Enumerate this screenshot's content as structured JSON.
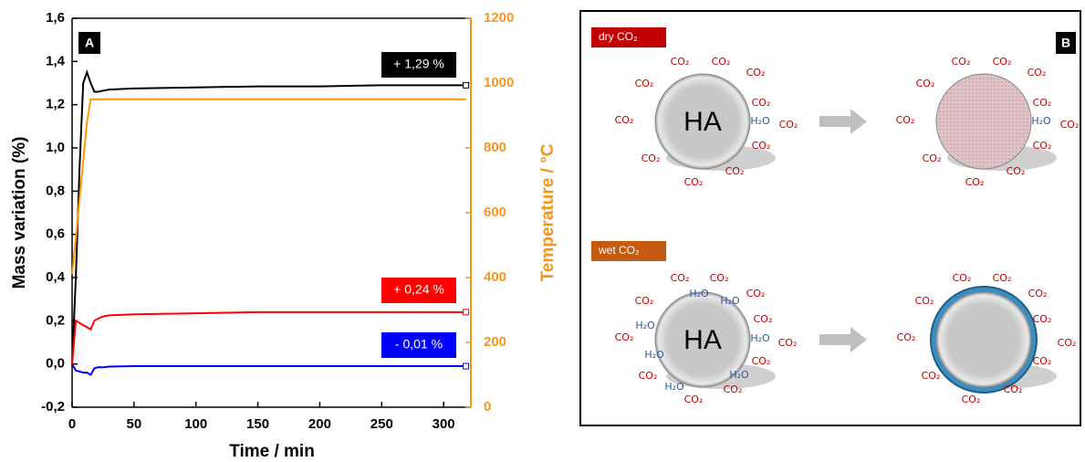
{
  "chart_data": {
    "type": "line",
    "panel_label": "A",
    "x_label": "Time / min",
    "y_label": "Mass variation (%)",
    "y2_label": "Temperature / °C",
    "xlim": [
      0,
      322
    ],
    "xticks": [
      0,
      50,
      100,
      150,
      200,
      250,
      300
    ],
    "ylim": [
      -0.2,
      1.6
    ],
    "yticks": [
      {
        "value": -0.2,
        "label": "-0,2"
      },
      {
        "value": 0,
        "label": "0,0"
      },
      {
        "value": 0.2,
        "label": "0,2"
      },
      {
        "value": 0.4,
        "label": "0,4"
      },
      {
        "value": 0.6,
        "label": "0,6"
      },
      {
        "value": 0.8,
        "label": "0,8"
      },
      {
        "value": 1.0,
        "label": "1,0"
      },
      {
        "value": 1.2,
        "label": "1,2"
      },
      {
        "value": 1.4,
        "label": "1,4"
      },
      {
        "value": 1.6,
        "label": "1,6"
      }
    ],
    "y2lim": [
      0,
      1200
    ],
    "y2ticks": [
      0,
      200,
      400,
      600,
      800,
      1000,
      1200
    ],
    "y2_color": "#f7941d",
    "x": [
      0,
      3,
      6,
      9,
      12,
      15,
      18,
      21,
      25,
      30,
      50,
      100,
      150,
      200,
      250,
      300,
      318
    ],
    "series": [
      {
        "color": "#000000",
        "values": [
          0,
          0.4,
          0.9,
          1.3,
          1.35,
          1.3,
          1.26,
          1.26,
          1.265,
          1.27,
          1.275,
          1.28,
          1.285,
          1.285,
          1.29,
          1.29,
          1.29
        ]
      },
      {
        "color": "#ff9900",
        "axis": "y2",
        "values": [
          410,
          520,
          640,
          760,
          880,
          950,
          950,
          950,
          950,
          950,
          950,
          950,
          950,
          950,
          950,
          950,
          950
        ]
      },
      {
        "color": "#ff0000",
        "values": [
          0,
          0.2,
          0.19,
          0.18,
          0.17,
          0.16,
          0.2,
          0.21,
          0.22,
          0.225,
          0.23,
          0.235,
          0.24,
          0.24,
          0.24,
          0.24,
          0.24
        ]
      },
      {
        "color": "#0000ff",
        "values": [
          0,
          -0.03,
          -0.035,
          -0.04,
          -0.04,
          -0.05,
          -0.02,
          -0.015,
          -0.015,
          -0.012,
          -0.01,
          -0.01,
          -0.01,
          -0.01,
          -0.01,
          -0.01,
          -0.01
        ]
      }
    ],
    "annotations": [
      {
        "text": "+ 1,29 %",
        "color": "#000000"
      },
      {
        "text": "+ 0,24 %",
        "color": "#ff0000"
      },
      {
        "text": "- 0,01 %",
        "color": "#0000ff"
      }
    ]
  },
  "diagram": {
    "panel_label": "B",
    "rows": [
      {
        "tag": "dry CO₂",
        "core": "HA",
        "before": [
          "CO₂",
          "CO₂",
          "CO₂",
          "CO₂",
          "CO₂",
          "CO₂",
          "CO₂",
          "CO₂",
          "CO₂",
          "CO₂",
          "CO₂",
          "H₂O"
        ],
        "after": [
          "CO₂",
          "CO₂",
          "CO₂",
          "CO₂",
          "CO₂",
          "CO₂",
          "CO₂",
          "CO₂",
          "CO₂",
          "CO₂",
          "CO₂",
          "H₂O"
        ]
      },
      {
        "tag": "wet CO₂",
        "core": "HA",
        "before": [
          "CO₂",
          "CO₂",
          "CO₂",
          "CO₂",
          "H₂O",
          "H₂O",
          "CO₂",
          "H₂O",
          "H₂O",
          "CO₂",
          "CO₂",
          "H₂O",
          "CO₂",
          "CO₂",
          "H₂O",
          "CO₂",
          "H₂O",
          "CO₂"
        ],
        "after": [
          "CO₂",
          "CO₂",
          "CO₂",
          "CO₂",
          "CO₂",
          "CO₂",
          "CO₂",
          "CO₂",
          "CO₂",
          "CO₂",
          "CO₂"
        ]
      }
    ]
  }
}
